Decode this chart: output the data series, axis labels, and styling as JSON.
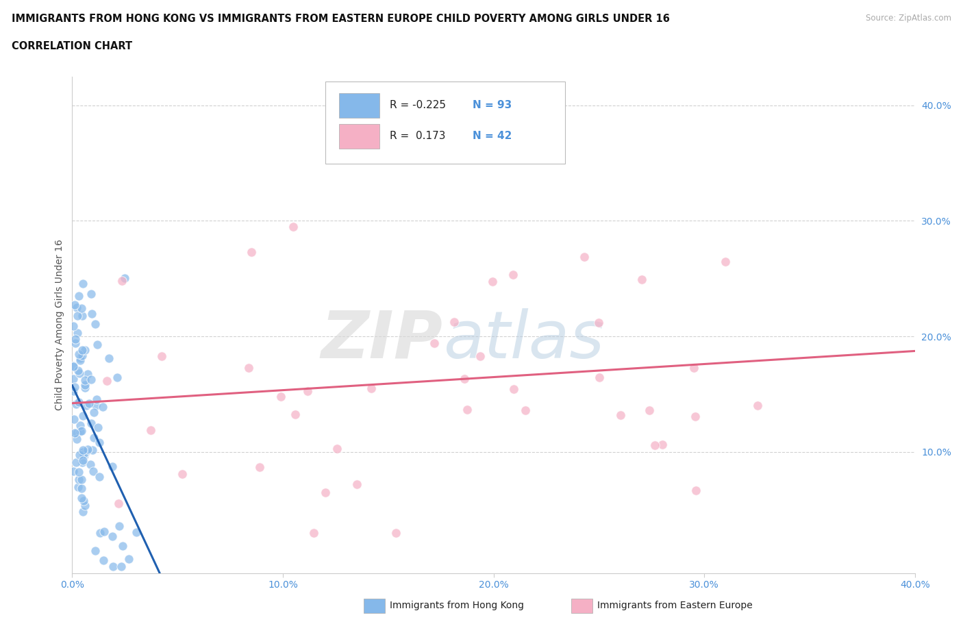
{
  "title_line1": "IMMIGRANTS FROM HONG KONG VS IMMIGRANTS FROM EASTERN EUROPE CHILD POVERTY AMONG GIRLS UNDER 16",
  "title_line2": "CORRELATION CHART",
  "source_text": "Source: ZipAtlas.com",
  "ylabel": "Child Poverty Among Girls Under 16",
  "xlim": [
    0.0,
    0.4
  ],
  "ylim": [
    -0.005,
    0.425
  ],
  "xtick_vals": [
    0.0,
    0.1,
    0.2,
    0.3,
    0.4
  ],
  "xtick_labels": [
    "0.0%",
    "10.0%",
    "20.0%",
    "30.0%",
    "40.0%"
  ],
  "ytick_vals": [
    0.1,
    0.2,
    0.3,
    0.4
  ],
  "ytick_labels": [
    "10.0%",
    "20.0%",
    "30.0%",
    "40.0%"
  ],
  "grid_color": "#cccccc",
  "background_color": "#ffffff",
  "hk_color": "#85b8ea",
  "ee_color": "#f5b0c5",
  "hk_R": -0.225,
  "hk_N": 93,
  "ee_R": 0.173,
  "ee_N": 42,
  "legend_label_hk": "Immigrants from Hong Kong",
  "legend_label_ee": "Immigrants from Eastern Europe",
  "hk_line_color": "#2060b0",
  "hk_dash_color": "#90b8d8",
  "ee_line_color": "#e06080",
  "tick_color": "#4a90d9",
  "title_color": "#111111"
}
